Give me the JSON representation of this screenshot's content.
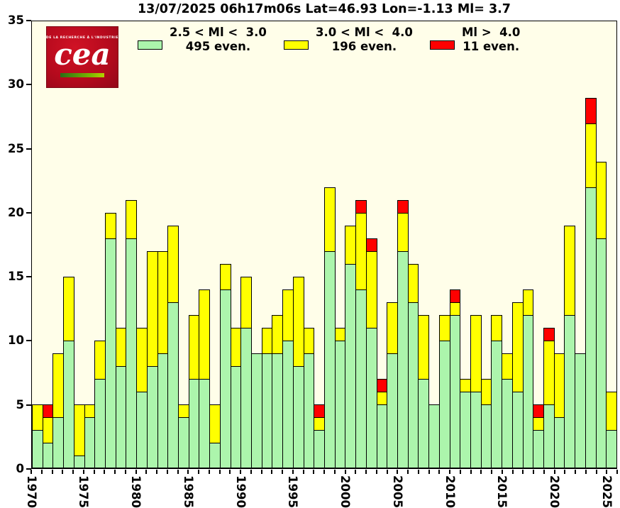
{
  "title": "13/07/2025 06h17m06s Lat=46.93 Lon=-1.13 Ml= 3.7",
  "logo": {
    "tagline": "DE LA RECHERCHE À L'INDUSTRIE",
    "text": "cea"
  },
  "legend": {
    "entries": [
      {
        "line1": "2.5 < Ml <  3.0",
        "line2": "495 even.",
        "color": "#ACF5AC"
      },
      {
        "line1": "3.0 < Ml <  4.0",
        "line2": "196 even.",
        "color": "#FFFF00"
      },
      {
        "line1": "Ml >  4.0",
        "line2": "11 even.",
        "color": "#FF0000"
      }
    ]
  },
  "chart_data": {
    "type": "bar",
    "stacked": true,
    "grid": false,
    "legend_position": "top-inside",
    "title": "13/07/2025 06h17m06s Lat=46.93 Lon=-1.13 Ml= 3.7",
    "xlabel": "",
    "ylabel": "",
    "ylim": [
      0,
      35
    ],
    "y_ticks": [
      0,
      5,
      10,
      15,
      20,
      25,
      30,
      35
    ],
    "x_labeled_ticks": [
      1970,
      1975,
      1980,
      1985,
      1990,
      1995,
      2000,
      2005,
      2010,
      2015,
      2020,
      2025
    ],
    "x": [
      1970,
      1971,
      1972,
      1973,
      1974,
      1975,
      1976,
      1977,
      1978,
      1979,
      1980,
      1981,
      1982,
      1983,
      1984,
      1985,
      1986,
      1987,
      1988,
      1989,
      1990,
      1991,
      1992,
      1993,
      1994,
      1995,
      1996,
      1997,
      1998,
      1999,
      2000,
      2001,
      2002,
      2003,
      2004,
      2005,
      2006,
      2007,
      2008,
      2009,
      2010,
      2011,
      2012,
      2013,
      2014,
      2015,
      2016,
      2017,
      2018,
      2019,
      2020,
      2021,
      2022,
      2023,
      2024,
      2025
    ],
    "series": [
      {
        "name": "2.5 < Ml < 3.0",
        "count": 495,
        "color": "#ACF5AC",
        "values": [
          3,
          2,
          4,
          10,
          1,
          4,
          7,
          18,
          8,
          18,
          6,
          8,
          9,
          13,
          4,
          7,
          7,
          2,
          14,
          8,
          11,
          9,
          9,
          9,
          10,
          8,
          9,
          3,
          17,
          10,
          16,
          14,
          11,
          5,
          9,
          17,
          13,
          7,
          5,
          10,
          12,
          6,
          6,
          5,
          10,
          7,
          6,
          12,
          3,
          5,
          4,
          12,
          9,
          22,
          18,
          3
        ]
      },
      {
        "name": "3.0 < Ml < 4.0",
        "count": 196,
        "color": "#FFFF00",
        "values": [
          2,
          2,
          5,
          5,
          4,
          1,
          3,
          2,
          3,
          3,
          5,
          9,
          8,
          6,
          1,
          5,
          7,
          3,
          2,
          3,
          4,
          0,
          2,
          3,
          4,
          7,
          2,
          1,
          5,
          1,
          3,
          6,
          6,
          1,
          4,
          3,
          3,
          5,
          0,
          2,
          1,
          1,
          6,
          2,
          2,
          2,
          7,
          2,
          1,
          5,
          5,
          7,
          0,
          5,
          6,
          3
        ]
      },
      {
        "name": "Ml > 4.0",
        "count": 11,
        "color": "#FF0000",
        "values": [
          0,
          1,
          0,
          0,
          0,
          0,
          0,
          0,
          0,
          0,
          0,
          0,
          0,
          0,
          0,
          0,
          0,
          0,
          0,
          0,
          0,
          0,
          0,
          0,
          0,
          0,
          0,
          1,
          0,
          0,
          0,
          1,
          1,
          1,
          0,
          1,
          0,
          0,
          0,
          0,
          1,
          0,
          0,
          0,
          0,
          0,
          0,
          0,
          1,
          1,
          0,
          0,
          0,
          2,
          0,
          0
        ]
      }
    ]
  }
}
